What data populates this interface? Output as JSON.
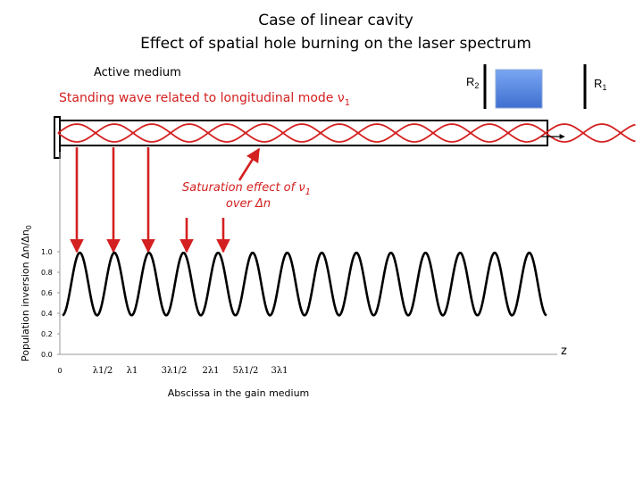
{
  "title": {
    "line1": "Case of linear cavity",
    "line2": "Effect of  spatial hole burning on the laser spectrum"
  },
  "labels": {
    "active_medium": "Active medium",
    "standing_wave": "Standing wave related to longitudinal mode ν",
    "standing_wave_sub": "1",
    "saturation_line1": "Saturation effect of  ν",
    "saturation_sub": "1",
    "saturation_line2": "over Δn",
    "mirror_r2": "R",
    "mirror_r2_sub": "2",
    "mirror_r1": "R",
    "mirror_r1_sub": "1"
  },
  "colors": {
    "wave": "#d42020",
    "arrow": "#d42020",
    "medium_fill_top": "#7aa6f2",
    "medium_fill_bottom": "#3e6fd0",
    "plot": "#000000"
  },
  "chart_data": {
    "type": "line",
    "ylabel": "Population inversion Δn/Δn",
    "ylabel_sub": "0",
    "xlabel": "Abscissa in the gain medium",
    "z_label": "z",
    "ylim": [
      0,
      1
    ],
    "yticks": [
      "0.0",
      "0.2",
      "0.4",
      "0.6",
      "0.8",
      "1.0"
    ],
    "xticks": [
      "0",
      "λ1/2",
      "λ1",
      "3λ1/2",
      "2λ1",
      "5λ1/2",
      "3λ1"
    ],
    "periods": 14,
    "min_value": 0.38,
    "max_value": 0.99
  }
}
